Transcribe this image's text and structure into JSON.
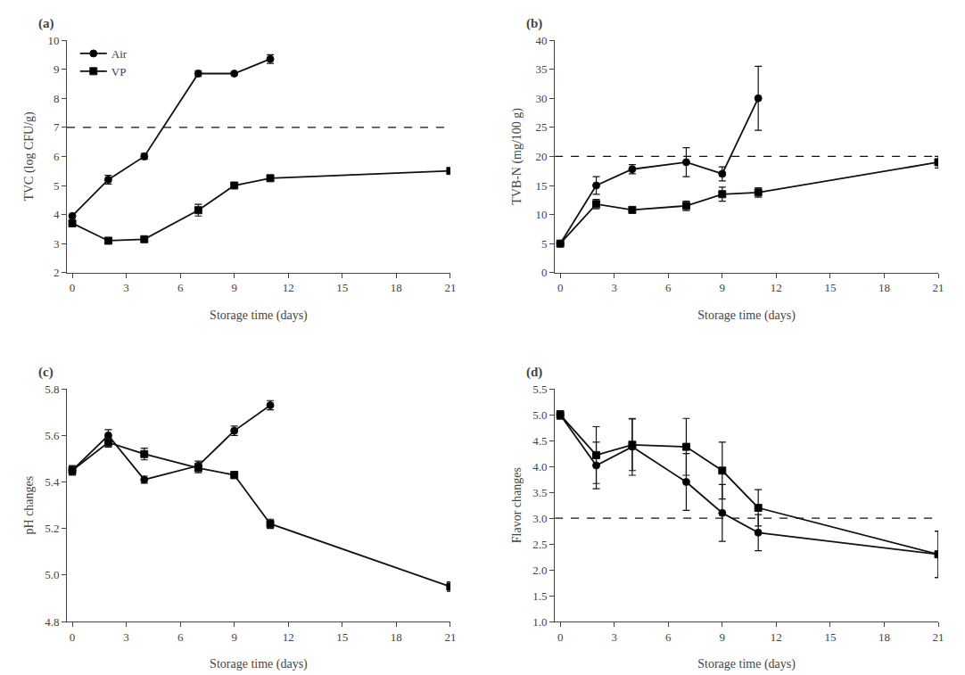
{
  "chart_data": [
    {
      "type": "line",
      "title": "(a)",
      "x_label": "Storage time (days)",
      "y_label": "TVC (log CFU/g)",
      "xlim": [
        -0.3,
        21
      ],
      "xticks": [
        0,
        3,
        6,
        9,
        12,
        15,
        18,
        21
      ],
      "ylim": [
        2,
        10
      ],
      "yticks": [
        2,
        3,
        4,
        5,
        6,
        7,
        8,
        9,
        10
      ],
      "grid": false,
      "legend": "upper left",
      "reference_line": 7,
      "series": [
        {
          "name": "Air",
          "color": "#111111",
          "marker": "circle",
          "line_style": "solid",
          "x": [
            0,
            2,
            4,
            7,
            9,
            11
          ],
          "values": [
            3.95,
            5.2,
            6.0,
            8.85,
            8.85,
            9.35
          ],
          "errors": [
            0.05,
            0.15,
            0.1,
            0.1,
            0.05,
            0.15
          ]
        },
        {
          "name": "VP",
          "color": "#111111",
          "marker": "square",
          "line_style": "solid",
          "x": [
            0,
            2,
            4,
            7,
            9,
            11,
            21
          ],
          "values": [
            3.7,
            3.1,
            3.15,
            4.15,
            5.0,
            5.25,
            5.5
          ],
          "errors": [
            0.05,
            0.1,
            0.05,
            0.2,
            0.05,
            0.1,
            0.07
          ]
        }
      ]
    },
    {
      "type": "line",
      "title": "(b)",
      "x_label": "Storage time (days)",
      "y_label": "TVB-N (mg/100 g)",
      "xlim": [
        -0.3,
        21
      ],
      "xticks": [
        0,
        3,
        6,
        9,
        12,
        15,
        18,
        21
      ],
      "ylim": [
        0,
        40
      ],
      "yticks": [
        0,
        5,
        10,
        15,
        20,
        25,
        30,
        35,
        40
      ],
      "grid": false,
      "reference_line": 20,
      "series": [
        {
          "name": "Air",
          "color": "#111111",
          "marker": "circle",
          "line_style": "solid",
          "x": [
            0,
            2,
            4,
            7,
            9,
            11
          ],
          "values": [
            5.0,
            15.0,
            17.8,
            19.0,
            17.0,
            30.0
          ],
          "errors": [
            0.1,
            1.5,
            0.8,
            2.5,
            1.2,
            5.5
          ]
        },
        {
          "name": "VP",
          "color": "#111111",
          "marker": "square",
          "line_style": "solid",
          "x": [
            0,
            2,
            4,
            7,
            9,
            11,
            21
          ],
          "values": [
            5.0,
            11.8,
            10.8,
            11.5,
            13.5,
            13.8,
            19.0
          ],
          "errors": [
            0.1,
            0.8,
            0.5,
            0.8,
            1.2,
            0.8,
            1.0
          ]
        }
      ]
    },
    {
      "type": "line",
      "title": "(c)",
      "x_label": "Storage time (days)",
      "y_label": "pH changes",
      "xlim": [
        -0.3,
        21
      ],
      "xticks": [
        0,
        3,
        6,
        9,
        12,
        15,
        18,
        21
      ],
      "ylim": [
        4.8,
        5.8
      ],
      "yticks": [
        4.8,
        {
          "value": 5.0,
          "label": "5.0"
        },
        5.2,
        5.4,
        5.6,
        5.8
      ],
      "grid": false,
      "series": [
        {
          "name": "Air",
          "color": "#111111",
          "marker": "circle",
          "line_style": "solid",
          "x": [
            0,
            2,
            4,
            7,
            9,
            11
          ],
          "values": [
            5.45,
            5.6,
            5.41,
            5.47,
            5.62,
            5.73
          ],
          "errors": [
            0.02,
            0.025,
            0.015,
            0.02,
            0.02,
            0.02
          ]
        },
        {
          "name": "VP",
          "color": "#111111",
          "marker": "square",
          "line_style": "solid",
          "x": [
            0,
            2,
            4,
            7,
            9,
            11,
            21
          ],
          "values": [
            5.45,
            5.57,
            5.52,
            5.46,
            5.43,
            5.22,
            4.95
          ],
          "errors": [
            0.02,
            0.02,
            0.025,
            0.02,
            0.015,
            0.02,
            0.02
          ]
        }
      ]
    },
    {
      "type": "line",
      "title": "(d)",
      "x_label": "Storage time (days)",
      "y_label": "Flavor changes",
      "xlim": [
        -0.3,
        21
      ],
      "xticks": [
        0,
        3,
        6,
        9,
        12,
        15,
        18,
        21
      ],
      "ylim": [
        1.0,
        5.5
      ],
      "yticks": [
        {
          "value": 1.0,
          "label": "1.0"
        },
        1.5,
        {
          "value": 2.0,
          "label": "2.0"
        },
        2.5,
        {
          "value": 3.0,
          "label": "3.0"
        },
        3.5,
        {
          "value": 4.0,
          "label": "4.0"
        },
        4.5,
        {
          "value": 5.0,
          "label": "5.0"
        },
        5.5
      ],
      "grid": false,
      "reference_line": 3.0,
      "series": [
        {
          "name": "Air",
          "color": "#111111",
          "marker": "circle",
          "line_style": "solid",
          "x": [
            0,
            2,
            4,
            7,
            9,
            11,
            21
          ],
          "values": [
            5.0,
            4.02,
            4.38,
            3.7,
            3.1,
            2.72,
            2.3
          ],
          "errors": [
            0.08,
            0.45,
            0.55,
            0.55,
            0.55,
            0.35,
            0.45
          ]
        },
        {
          "name": "VP",
          "color": "#111111",
          "marker": "square",
          "line_style": "solid",
          "x": [
            0,
            2,
            4,
            7,
            9,
            11,
            21
          ],
          "values": [
            5.0,
            4.22,
            4.42,
            4.38,
            3.92,
            3.2,
            2.3
          ],
          "errors": [
            0.08,
            0.55,
            0.5,
            0.55,
            0.55,
            0.35,
            0.45
          ]
        }
      ]
    }
  ]
}
